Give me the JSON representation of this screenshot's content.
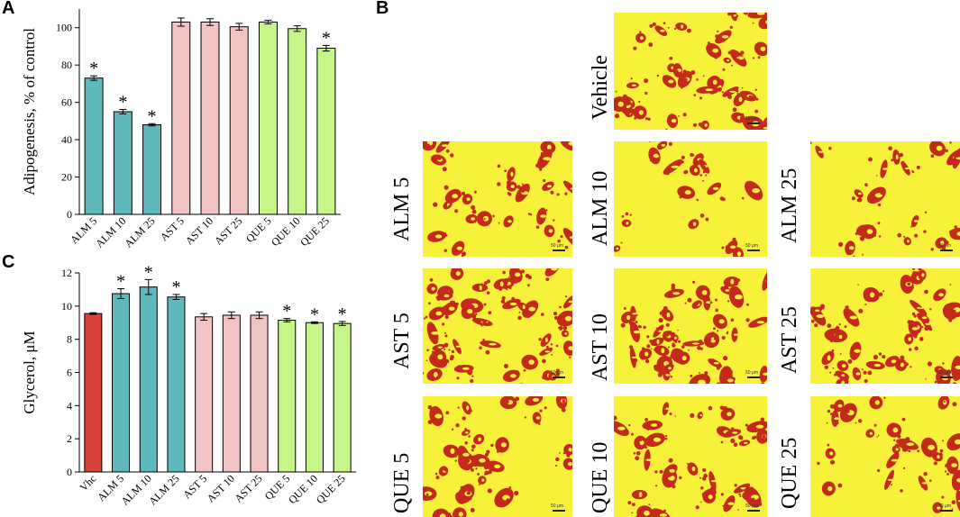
{
  "panels": {
    "a": "A",
    "b": "B",
    "c": "C"
  },
  "colors": {
    "vehicle": "#d9413f",
    "alm": "#5fb8bc",
    "ast": "#f2c3c3",
    "que": "#c6f58a",
    "stain": "#c42a1a",
    "background": "#f7f13a"
  },
  "chart_data": [
    {
      "id": "A",
      "type": "bar",
      "ylabel": "Adipogenesis, % of control",
      "ylim": [
        0,
        110
      ],
      "yticks": [
        0,
        20,
        40,
        60,
        80,
        100
      ],
      "categories": [
        "ALM 5",
        "ALM 10",
        "ALM 25",
        "AST 5",
        "AST 10",
        "AST 25",
        "QUE 5",
        "QUE 10",
        "QUE 25"
      ],
      "groups": [
        "alm",
        "alm",
        "alm",
        "ast",
        "ast",
        "ast",
        "que",
        "que",
        "que"
      ],
      "values": [
        73,
        55,
        48,
        103,
        103,
        100.5,
        103,
        99.5,
        89
      ],
      "errors": [
        1.2,
        1.2,
        0.6,
        2.2,
        1.8,
        1.8,
        1.0,
        1.5,
        1.5
      ],
      "significant": [
        true,
        true,
        true,
        false,
        false,
        false,
        false,
        false,
        true
      ],
      "marker": "*"
    },
    {
      "id": "C",
      "type": "bar",
      "ylabel": "Glycerol, μM",
      "ylim": [
        0,
        12
      ],
      "yticks": [
        0,
        2,
        4,
        6,
        8,
        10,
        12
      ],
      "categories": [
        "Vhc",
        "ALM 5",
        "ALM 10",
        "ALM 25",
        "AST 5",
        "AST 10",
        "AST 25",
        "QUE 5",
        "QUE 10",
        "QUE 25"
      ],
      "groups": [
        "vehicle",
        "alm",
        "alm",
        "alm",
        "ast",
        "ast",
        "ast",
        "que",
        "que",
        "que"
      ],
      "values": [
        9.55,
        10.75,
        11.15,
        10.55,
        9.35,
        9.45,
        9.45,
        9.15,
        9.0,
        8.95
      ],
      "errors": [
        0.05,
        0.3,
        0.45,
        0.15,
        0.2,
        0.2,
        0.2,
        0.1,
        0.05,
        0.12
      ],
      "significant": [
        false,
        true,
        true,
        true,
        false,
        false,
        false,
        true,
        true,
        true
      ],
      "marker": "*"
    }
  ],
  "images": [
    {
      "label": "Vehicle",
      "scale": "50 μm"
    },
    {
      "label": "ALM 5",
      "scale": "50 μm"
    },
    {
      "label": "ALM 10",
      "scale": "50 μm"
    },
    {
      "label": "ALM 25",
      "scale": "50 μm"
    },
    {
      "label": "AST 5",
      "scale": "50 μm"
    },
    {
      "label": "AST 10",
      "scale": "50 μm"
    },
    {
      "label": "AST 25",
      "scale": "50 μm"
    },
    {
      "label": "QUE 5",
      "scale": "50 μm"
    },
    {
      "label": "QUE 10",
      "scale": "50 μm"
    },
    {
      "label": "QUE 25",
      "scale": "50 μm"
    }
  ]
}
